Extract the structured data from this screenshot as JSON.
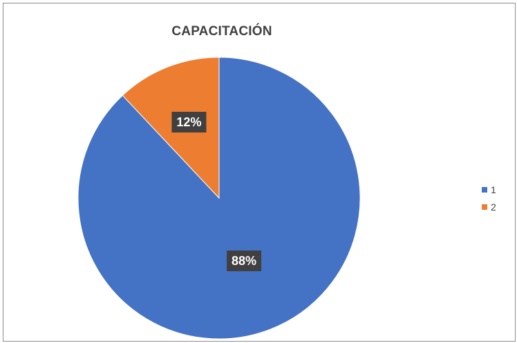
{
  "chart_data": {
    "type": "pie",
    "title": "CAPACITACIÓN",
    "categories": [
      "1",
      "2"
    ],
    "values": [
      88,
      12
    ],
    "data_labels": [
      "88%",
      "12%"
    ],
    "colors": [
      "#4472c4",
      "#ed7d31"
    ],
    "legend_position": "right",
    "start_angle": "12 o'clock, clockwise"
  }
}
